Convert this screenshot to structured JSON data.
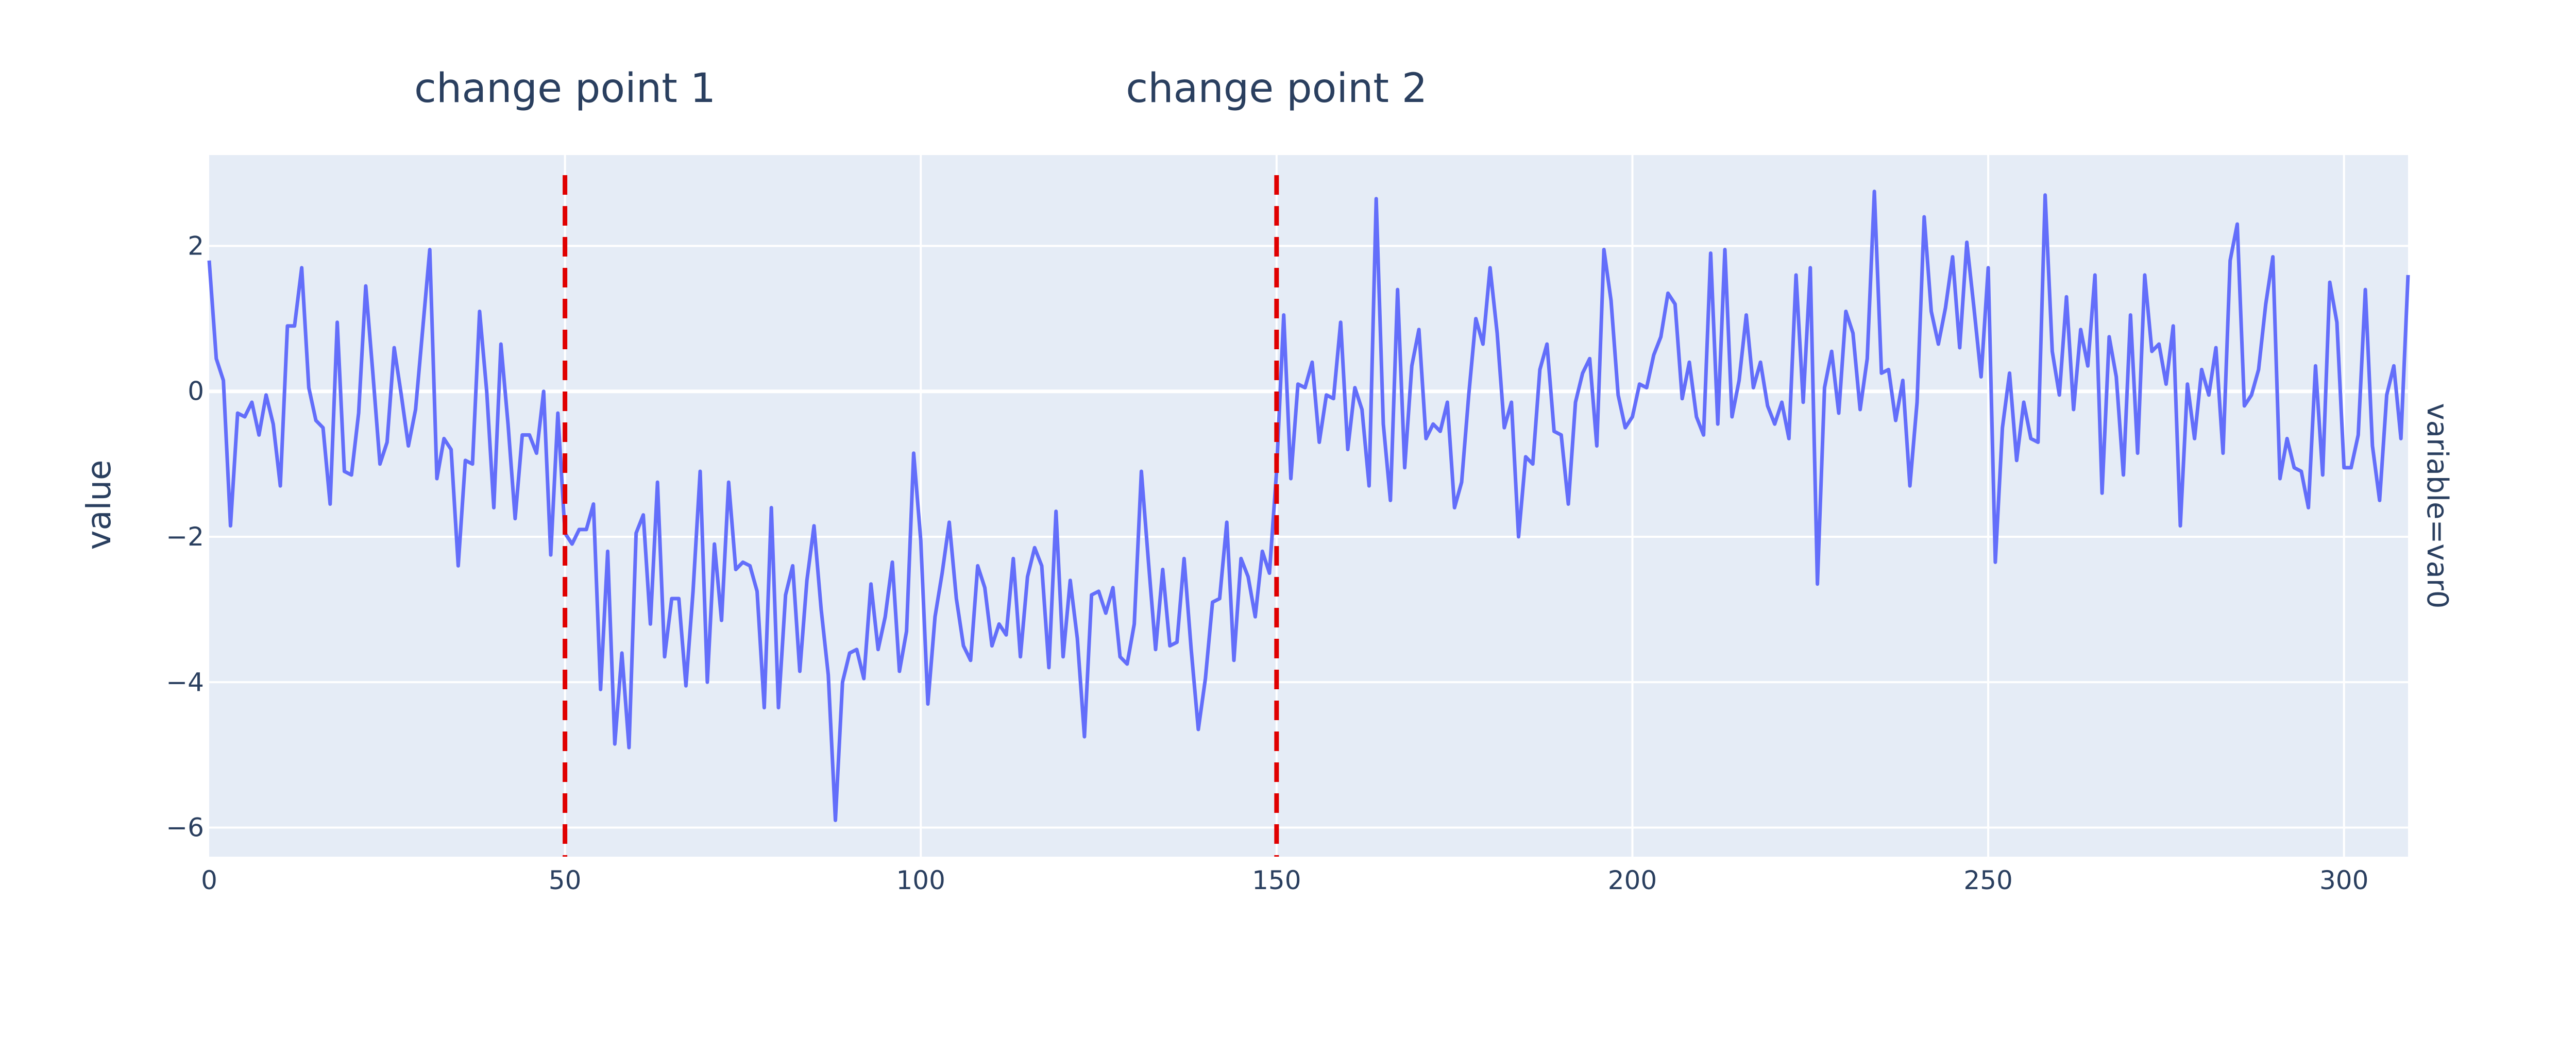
{
  "chart_data": {
    "type": "line",
    "title": "",
    "xlabel": "",
    "ylabel": "value",
    "facet_label": "variable=var0",
    "xlim": [
      0,
      309
    ],
    "ylim": [
      -6.4,
      3.25
    ],
    "x_ticks": [
      0,
      50,
      100,
      150,
      200,
      250,
      300
    ],
    "y_ticks": [
      2,
      0,
      -2,
      -4,
      -6
    ],
    "tick_labels": {
      "x": [
        "0",
        "50",
        "100",
        "150",
        "200",
        "250",
        "300"
      ],
      "y": [
        "2",
        "0",
        "−2",
        "−4",
        "−6"
      ]
    },
    "grid": true,
    "legend": "none",
    "colors": {
      "line": "#636efa",
      "vline": "#e00000",
      "plot_bg": "#e5ecf6",
      "grid": "#ffffff"
    },
    "annotations": [
      {
        "x": 50,
        "label": "change point 1",
        "style": "dashed"
      },
      {
        "x": 150,
        "label": "change point 2",
        "style": "dashed"
      }
    ],
    "series": [
      {
        "values": [
          1.8,
          0.45,
          0.15,
          -1.85,
          -0.3,
          -0.35,
          -0.15,
          -0.6,
          -0.05,
          -0.45,
          -1.3,
          0.9,
          0.9,
          1.7,
          0.05,
          -0.4,
          -0.5,
          -1.55,
          0.95,
          -1.1,
          -1.15,
          -0.3,
          1.45,
          0.25,
          -1.0,
          -0.7,
          0.6,
          -0.05,
          -0.75,
          -0.25,
          0.85,
          1.95,
          -1.2,
          -0.65,
          -0.8,
          -2.4,
          -0.95,
          -1.0,
          1.1,
          0.0,
          -1.6,
          0.65,
          -0.45,
          -1.75,
          -0.6,
          -0.6,
          -0.85,
          0.0,
          -2.25,
          -0.3,
          -1.95,
          -2.1,
          -1.9,
          -1.9,
          -1.55,
          -4.1,
          -2.2,
          -4.85,
          -3.6,
          -4.9,
          -1.95,
          -1.7,
          -3.2,
          -1.25,
          -3.65,
          -2.85,
          -2.85,
          -4.05,
          -2.75,
          -1.1,
          -4.0,
          -2.1,
          -3.15,
          -1.25,
          -2.45,
          -2.35,
          -2.4,
          -2.75,
          -4.35,
          -1.6,
          -4.35,
          -2.8,
          -2.4,
          -3.85,
          -2.6,
          -1.85,
          -3.0,
          -3.9,
          -5.9,
          -4.0,
          -3.6,
          -3.55,
          -3.95,
          -2.65,
          -3.55,
          -3.1,
          -2.35,
          -3.85,
          -3.3,
          -0.85,
          -2.05,
          -4.3,
          -3.1,
          -2.5,
          -1.8,
          -2.85,
          -3.5,
          -3.7,
          -2.4,
          -2.7,
          -3.5,
          -3.2,
          -3.35,
          -2.3,
          -3.65,
          -2.55,
          -2.15,
          -2.4,
          -3.8,
          -1.65,
          -3.65,
          -2.6,
          -3.4,
          -4.75,
          -2.8,
          -2.75,
          -3.05,
          -2.7,
          -3.65,
          -3.75,
          -3.2,
          -1.1,
          -2.35,
          -3.55,
          -2.45,
          -3.5,
          -3.45,
          -2.3,
          -3.55,
          -4.65,
          -3.95,
          -2.9,
          -2.85,
          -1.8,
          -3.7,
          -2.3,
          -2.55,
          -3.1,
          -2.2,
          -2.5,
          -1.1,
          1.05,
          -1.2,
          0.1,
          0.05,
          0.4,
          -0.7,
          -0.05,
          -0.1,
          0.95,
          -0.8,
          0.05,
          -0.25,
          -1.3,
          2.65,
          -0.45,
          -1.5,
          1.4,
          -1.05,
          0.35,
          0.85,
          -0.65,
          -0.45,
          -0.55,
          -0.15,
          -1.6,
          -1.25,
          -0.05,
          1.0,
          0.65,
          1.7,
          0.8,
          -0.5,
          -0.15,
          -2.0,
          -0.9,
          -1.0,
          0.3,
          0.65,
          -0.55,
          -0.6,
          -1.55,
          -0.15,
          0.25,
          0.45,
          -0.75,
          1.95,
          1.25,
          -0.05,
          -0.5,
          -0.35,
          0.1,
          0.05,
          0.5,
          0.75,
          1.35,
          1.2,
          -0.1,
          0.4,
          -0.35,
          -0.6,
          1.9,
          -0.45,
          1.95,
          -0.35,
          0.15,
          1.05,
          0.05,
          0.4,
          -0.2,
          -0.45,
          -0.15,
          -0.65,
          1.6,
          -0.15,
          1.7,
          -2.65,
          0.05,
          0.55,
          -0.3,
          1.1,
          0.8,
          -0.25,
          0.45,
          2.75,
          0.25,
          0.3,
          -0.4,
          0.15,
          -1.3,
          -0.15,
          2.4,
          1.1,
          0.65,
          1.15,
          1.85,
          0.6,
          2.05,
          1.15,
          0.2,
          1.7,
          -2.35,
          -0.5,
          0.25,
          -0.95,
          -0.15,
          -0.65,
          -0.7,
          2.7,
          0.55,
          -0.05,
          1.3,
          -0.25,
          0.85,
          0.35,
          1.6,
          -1.4,
          0.75,
          0.2,
          -1.15,
          1.05,
          -0.85,
          1.6,
          0.55,
          0.65,
          0.1,
          0.9,
          -1.85,
          0.1,
          -0.65,
          0.3,
          -0.05,
          0.6,
          -0.85,
          1.8,
          2.3,
          -0.2,
          -0.05,
          0.3,
          1.2,
          1.85,
          -1.2,
          -0.65,
          -1.05,
          -1.1,
          -1.6,
          0.35,
          -1.15,
          1.5,
          0.95,
          -1.05,
          -1.05,
          -0.6,
          1.4,
          -0.75,
          -1.5,
          -0.05,
          0.35,
          -0.65,
          1.6
        ]
      }
    ]
  }
}
